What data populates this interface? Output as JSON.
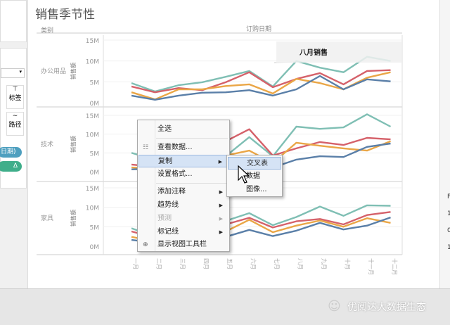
{
  "sheet": {
    "title": "销售季节性",
    "row_header": "类别",
    "col_header": "订购日期",
    "annotation": "八月销售"
  },
  "left_panel": {
    "label_btn": "标签",
    "path_btn": "路径",
    "pill_date": "日期)",
    "pill_delta": "Δ"
  },
  "chart_data": {
    "type": "line",
    "ylabel": "销售额",
    "yticks": [
      "0M",
      "5M",
      "10M",
      "15M"
    ],
    "ylim": [
      0,
      15.5
    ],
    "categories": [
      "一月",
      "二月",
      "三月",
      "四月",
      "五月",
      "六月",
      "七月",
      "八月",
      "九月",
      "十月",
      "十一月",
      "十二月"
    ],
    "series_colors": [
      "#7fbfb4",
      "#d5616a",
      "#eaa646",
      "#5a7fa8"
    ],
    "panels": [
      {
        "category": "办公用品",
        "series": [
          {
            "values": [
              4.7,
              2.7,
              4.2,
              4.9,
              6.2,
              7.6,
              3.9,
              10,
              8.4,
              7.3,
              11,
              10
            ]
          },
          {
            "values": [
              3.9,
              2.5,
              3.5,
              3,
              4.9,
              7.3,
              3.7,
              5.7,
              7.1,
              4.4,
              7.6,
              7.8
            ]
          },
          {
            "values": [
              2.5,
              0.8,
              3.2,
              3.2,
              4,
              4.4,
              2.2,
              5.7,
              4.7,
              3.2,
              6,
              7.3
            ]
          },
          {
            "values": [
              1.7,
              0.7,
              1.7,
              2.4,
              2.5,
              3,
              1.7,
              3.2,
              6.4,
              3.2,
              5.6,
              5.1
            ]
          }
        ]
      },
      {
        "category": "技术",
        "series": [
          {
            "values": [
              5,
              3.2,
              4.7,
              5.4,
              4.1,
              9.2,
              4.1,
              12,
              11.4,
              11.8,
              15.3,
              12
            ]
          },
          {
            "values": [
              1.9,
              1.3,
              1.9,
              5,
              8.1,
              11.3,
              4.3,
              6.2,
              7.9,
              7.1,
              9,
              8.6
            ]
          },
          {
            "values": [
              1.1,
              0.8,
              2.6,
              3.4,
              4.3,
              5.6,
              2.3,
              7.7,
              6.9,
              6.2,
              5.6,
              8.1
            ]
          },
          {
            "values": [
              0.6,
              0.8,
              2.3,
              0.4,
              1.9,
              3.2,
              1.1,
              3.2,
              4.1,
              3.9,
              6.6,
              7.5
            ]
          }
        ]
      },
      {
        "category": "家具",
        "series": [
          {
            "values": [
              4.6,
              2.5,
              4,
              4.6,
              6.5,
              8.5,
              5.4,
              7.5,
              10.2,
              7.8,
              10.5,
              10.4
            ]
          },
          {
            "values": [
              3.8,
              2.2,
              3.4,
              4,
              5.6,
              7.3,
              4.8,
              6.4,
              7,
              5.6,
              8,
              8.8
            ]
          },
          {
            "values": [
              2.4,
              1.2,
              2.8,
              3.4,
              3.8,
              6.8,
              3.6,
              5.3,
              6.6,
              5,
              7.2,
              6
            ]
          },
          {
            "values": [
              1.6,
              0.9,
              2,
              2.6,
              2.4,
              4.2,
              2.6,
              4,
              6,
              4.3,
              5.3,
              7.4
            ]
          }
        ]
      }
    ]
  },
  "context_menu": {
    "items": [
      {
        "label": "全选",
        "submenu": false
      },
      {
        "label": "查看数据...",
        "submenu": false,
        "icon": "table-icon"
      },
      {
        "label": "复制",
        "submenu": true,
        "highlighted": true
      },
      {
        "label": "设置格式...",
        "submenu": false
      },
      {
        "label": "添加注释",
        "submenu": true
      },
      {
        "label": "趋势线",
        "submenu": true
      },
      {
        "label": "预测",
        "submenu": true,
        "disabled": true
      },
      {
        "label": "标记线",
        "submenu": true
      },
      {
        "label": "显示视图工具栏",
        "submenu": false,
        "icon": "zoom-icon"
      }
    ]
  },
  "submenu": {
    "items": [
      {
        "label": "交叉表",
        "highlighted": true
      },
      {
        "label": "数据"
      },
      {
        "label": "图像..."
      }
    ]
  },
  "watermark": "优阅达大数据生态",
  "right_panel": {
    "chars": [
      "F",
      "1",
      "0",
      "1"
    ]
  }
}
